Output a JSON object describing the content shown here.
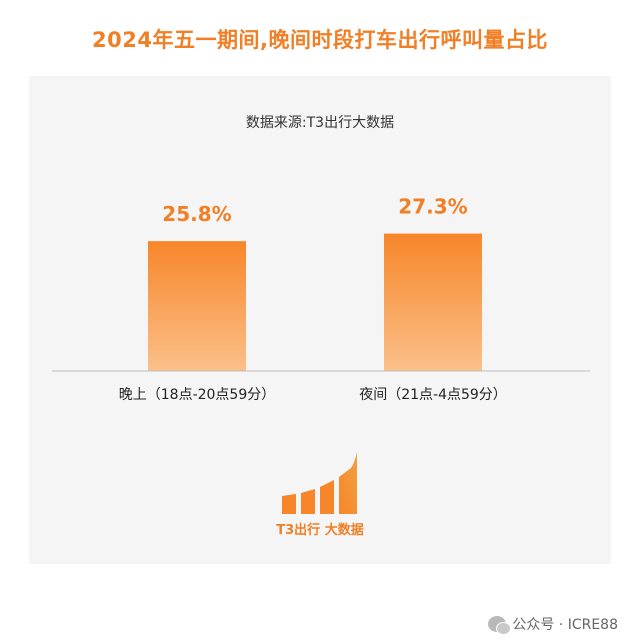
{
  "title": "2024年五一期间,晚间时段打车出行呼叫量占比",
  "source": "数据来源:T3出行大数据",
  "colors": {
    "title": "#f07f25",
    "bar_top": "#f7862a",
    "bar_bottom": "#fbc08a",
    "value_label": "#f07f25",
    "card_bg": "#f5f5f5"
  },
  "chart_data": {
    "type": "bar",
    "title": "2024年五一期间,晚间时段打车出行呼叫量占比",
    "categories": [
      "晚上（18点-20点59分）",
      "夜间（21点-4点59分）"
    ],
    "values": [
      25.8,
      27.3
    ],
    "value_labels": [
      "25.8%",
      "27.3%"
    ],
    "unit": "%",
    "ylim": [
      0,
      30
    ],
    "grid": false,
    "legend": "none"
  },
  "logo": {
    "text": "T3出行 大数据",
    "icon": "bar-chart-logo-icon"
  },
  "watermark": {
    "icon": "wechat-icon",
    "text": "公众号 · ICRE88"
  }
}
